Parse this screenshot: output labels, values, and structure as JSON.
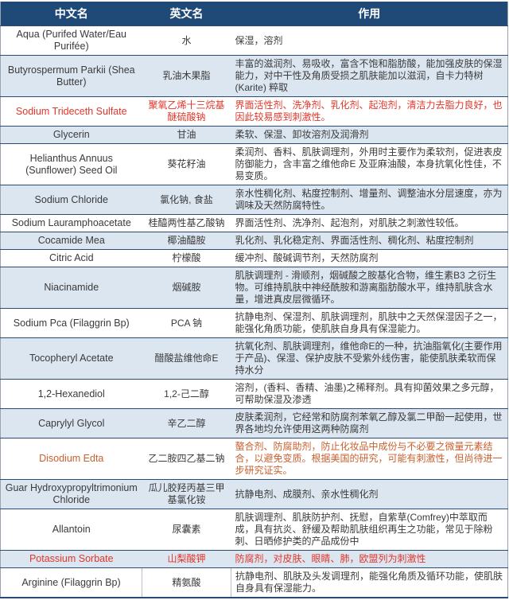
{
  "colors": {
    "header_bg": "#1F4977",
    "header_text": "#FFFFFF",
    "alt_row_bg": "#DCE6F1",
    "plain_row_bg": "#FFFFFF",
    "body_text": "#3A3A3A",
    "red_text": "#E2362A",
    "orange_text": "#C9602F",
    "row_border": "#2B4A75"
  },
  "table": {
    "headers": [
      "中文名",
      "英文名",
      "作用"
    ],
    "rows": [
      {
        "name": "Aqua (Purifed Water/Eau Purifée)",
        "cn": "水",
        "effect": "保湿，溶剂",
        "tone": "default"
      },
      {
        "name": "Butyrospermum Parkii (Shea Butter)",
        "cn": "乳油木果脂",
        "effect": "丰富的滋润剂、易吸收，富含不饱和脂肪酸，能加强皮肤的保湿能力，对中干性及角质受损之肌肤能加以滋润，自卡力特树(Karite) 粹取",
        "tone": "default"
      },
      {
        "name": "Sodium Trideceth Sulfate",
        "cn": "聚氧乙烯十三烷基醚硫酸钠",
        "effect": "界面活性剂、洗净剂、乳化剂、起泡剂，清洁力去脂力良好，也因此较易感到刺激性。",
        "tone": "red"
      },
      {
        "name": "Glycerin",
        "cn": "甘油",
        "effect": "柔软、保湿、卸妆溶剂及润滑剂",
        "tone": "default"
      },
      {
        "name": "Helianthus Annuus (Sunflower) Seed Oil",
        "cn": "葵花籽油",
        "effect": "柔润剂、香料、肌肤调理剂，外用时主要作为柔软剂，促进表皮防御能力，含丰富之维他命E 及亚麻油酸，本身抗氧化性佳，不易变质。",
        "tone": "default"
      },
      {
        "name": "Sodium Chloride",
        "cn": "氯化钠, 食盐",
        "effect": "亲水性稠化剂、粘度控制剂、增量剂、调整油水分层速度，亦为调味及天然防腐特性。",
        "tone": "default"
      },
      {
        "name": "Sodium Lauramphoacetate",
        "cn": "桂醯两性基乙酸钠",
        "effect": "界面活性剂、洗净剂、起泡剂，对肌肤之刺激性较低。",
        "tone": "default"
      },
      {
        "name": "Cocamide Mea",
        "cn": "椰油醯胺",
        "effect": "乳化剂、乳化稳定剂、界面活性剂、稠化剂、粘度控制剂",
        "tone": "default"
      },
      {
        "name": "Citric Acid",
        "cn": "柠檬酸",
        "effect": "缓冲剂、酸碱调节剂，天然防腐剂",
        "tone": "default"
      },
      {
        "name": "Niacinamide",
        "cn": "烟碱胺",
        "effect": "肌肤调理剂 - 滑顺剂，烟碱酸之胺基化合物，维生素B3 之衍生物。可维持肌肤中神经酰胺和游离脂肪酸水平，维持肌肤含水量，增进真皮层微循环。",
        "tone": "default"
      },
      {
        "name": "Sodium Pca (Filaggrin Bp)",
        "cn": "PCA 钠",
        "effect": "抗静电剂、保湿剂、肌肤调理剂，肌肤中之天然保湿因子之一，能强化角质功能，使肌肤自身具有保湿能力。",
        "tone": "default"
      },
      {
        "name": "Tocopheryl Acetate",
        "cn": "醋酸盐维他命E",
        "effect": "抗氧化剂、肌肤调理剂，维他命E的一种，抗油脂氧化(主要作用于产品)、保湿、保护皮肤不受紫外线伤害，能使肌肤柔软而保持水分",
        "tone": "default"
      },
      {
        "name": "1,2-Hexanediol",
        "cn": "1,2-己二醇",
        "effect": "溶剂，(香料、香精、油墨)之稀释剂。具有抑菌效果之多元醇，可帮助保湿及渗透",
        "tone": "default"
      },
      {
        "name": "Caprylyl Glycol",
        "cn": "辛乙二醇",
        "effect": "皮肤柔润剂，它经常和防腐剂苯氧乙醇及氯二甲酚一起使用，世界各地均允许使用这两种防腐剂",
        "tone": "default"
      },
      {
        "name": "Disodium Edta",
        "cn": "乙二胺四乙基二钠",
        "effect": "螯合剂、防腐助剂，防止化妆品中成份与不必要之微量元素结合，以避免变质。根据美国的研究，可能有刺激性，但尚待进一步研究证实。",
        "tone": "orange"
      },
      {
        "name": "Guar Hydroxypropyltrimonium Chloride",
        "cn": "瓜儿胶羟丙基三甲基氯化铵",
        "effect": "抗静电剂、成膜剂、亲水性稠化剂",
        "tone": "default"
      },
      {
        "name": "Allantoin",
        "cn": "尿囊素",
        "effect": "肌肤调理剂、肌肤防护剂、抚慰，自紫草(Comfrey)中萃取而成，具有抗炎、舒缓及帮助肌肤组织再生之功能，常见于除粉刺、日晒修护类的产品成份中",
        "tone": "default"
      },
      {
        "name": "Potassium Sorbate",
        "cn": "山梨酸钾",
        "effect": "防腐剂，对皮肤、眼睛、肺，欧盟列为刺激性",
        "tone": "red"
      },
      {
        "name": "Arginine (Filaggrin Bp)",
        "cn": "精氨酸",
        "effect": "抗静电剂、肌肤及头发调理剂，能强化角质及循环功能，使肌肤自身具有保湿能力。",
        "tone": "default"
      }
    ]
  }
}
